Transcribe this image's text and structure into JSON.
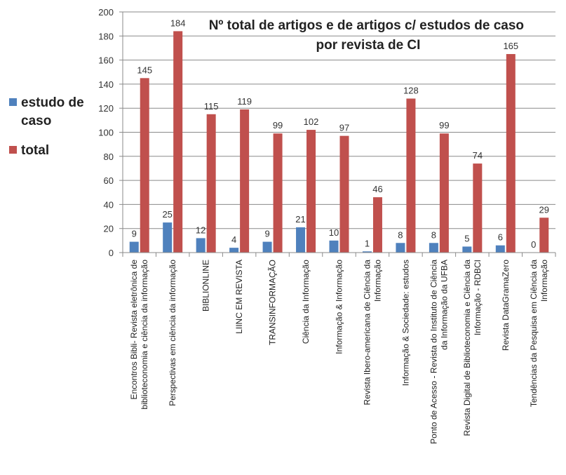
{
  "chart_data": {
    "type": "bar",
    "title": [
      "Nº total de artigos e de artigos c/ estudos de caso",
      "por revista de CI"
    ],
    "categories": [
      [
        "Encontros Bibli- Revista eletrônica de",
        "biblioteconomia e ciência da informação"
      ],
      [
        "Perspectivas em ciência da informação"
      ],
      [
        "BIBLIONLINE"
      ],
      [
        "LIINC EM REVISTA"
      ],
      [
        "TRANSINFORMAÇÃO"
      ],
      [
        "Ciência da Informação"
      ],
      [
        "Informação & Informação"
      ],
      [
        "Revista Ibero-americana de Ciência da",
        "Informação"
      ],
      [
        "Informação & Sociedade: estudos"
      ],
      [
        "Ponto de Acesso - Revista do Instituto de Ciência",
        "da Informação da UFBA"
      ],
      [
        "Revista Digital de Biblioteconomia e Ciência da",
        "Informação - RDBCI"
      ],
      [
        "Revista DataGramaZero"
      ],
      [
        "Tendências da Pesquisa em Ciência da",
        "Informação"
      ]
    ],
    "series": [
      {
        "name": "estudo de caso",
        "color": "#4f81bd",
        "values": [
          9,
          25,
          12,
          4,
          9,
          21,
          10,
          1,
          8,
          8,
          5,
          6,
          0
        ]
      },
      {
        "name": "total",
        "color": "#c0504d",
        "values": [
          145,
          184,
          115,
          119,
          99,
          102,
          97,
          46,
          128,
          99,
          74,
          165,
          29
        ]
      }
    ],
    "ylim": [
      0,
      200
    ],
    "yticks": [
      0,
      20,
      40,
      60,
      80,
      100,
      120,
      140,
      160,
      180,
      200
    ],
    "legend_position": "left",
    "legend_labels": [
      [
        "estudo de",
        "caso"
      ],
      [
        "total"
      ]
    ],
    "grid": true,
    "data_labels": true
  }
}
